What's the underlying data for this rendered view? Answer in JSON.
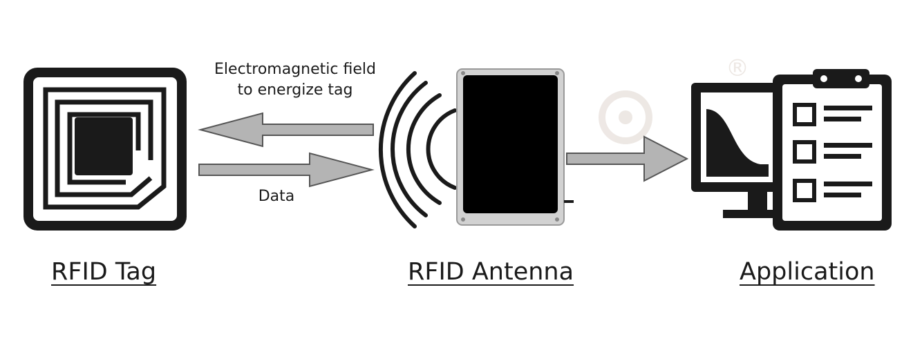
{
  "labels": {
    "field_line1": "Electromagnetic field",
    "field_line2": "to energize tag",
    "data": "Data",
    "watermark_symbol": "®"
  },
  "captions": {
    "tag": "RFID Tag",
    "antenna": "RFID Antenna",
    "application": "Application"
  },
  "colors": {
    "ink": "#1a1a1a",
    "arrow_fill": "#b4b4b4",
    "arrow_stroke": "#555555",
    "antenna_frame": "#c9c9c9",
    "watermark": "#ece6e2"
  },
  "icons": [
    "rfid-tag-icon",
    "radio-waves-icon",
    "rfid-antenna-icon",
    "monitor-icon",
    "clipboard-icon"
  ]
}
